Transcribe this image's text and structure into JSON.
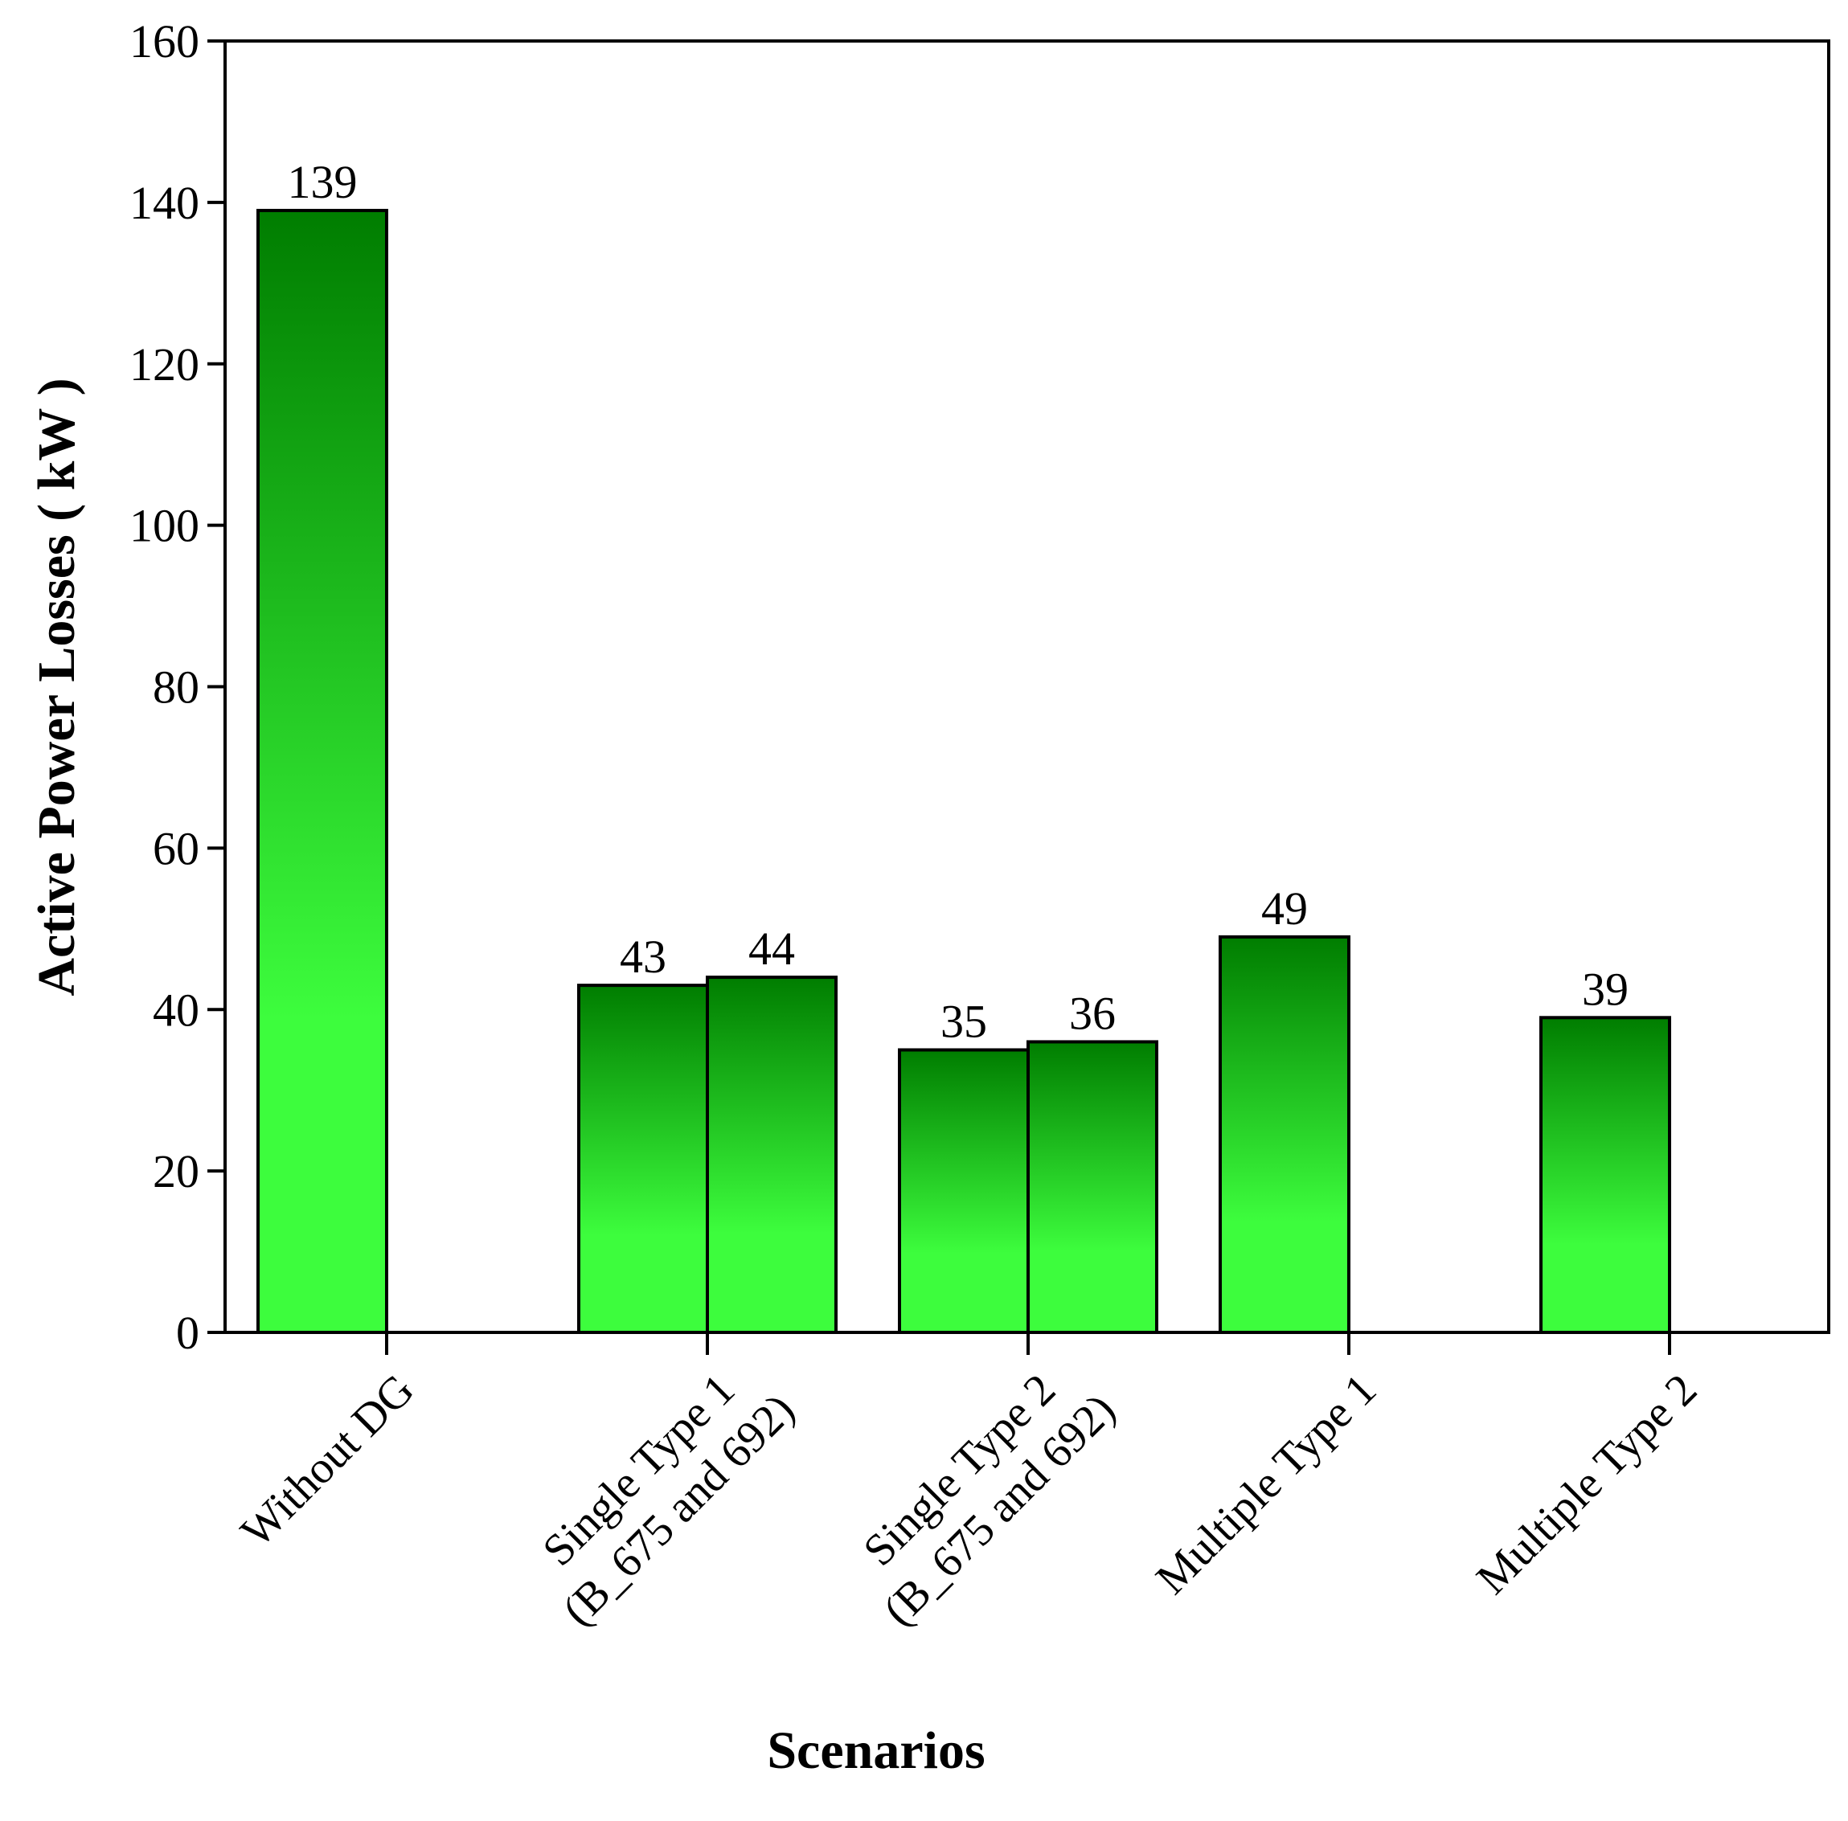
{
  "chart_data": {
    "type": "grouped-bar",
    "xlabel": "Scenarios",
    "ylabel": "Active Power Losses ( kW )",
    "categories": [
      [
        "Without DG"
      ],
      [
        "Single Type 1",
        "(B_675 and 692)"
      ],
      [
        "Single Type 2",
        "(B_675 and 692)"
      ],
      [
        "Multiple Type 1"
      ],
      [
        "Multiple Type 2"
      ]
    ],
    "values": [
      [
        139
      ],
      [
        43,
        44
      ],
      [
        35,
        36
      ],
      [
        49
      ],
      [
        39
      ]
    ],
    "gradient": [
      "#007d00",
      "#3dfd3d"
    ],
    "ylim": [
      0,
      160
    ],
    "yticks": [
      0,
      20,
      40,
      60,
      80,
      100,
      120,
      140,
      160
    ],
    "grid": false
  }
}
